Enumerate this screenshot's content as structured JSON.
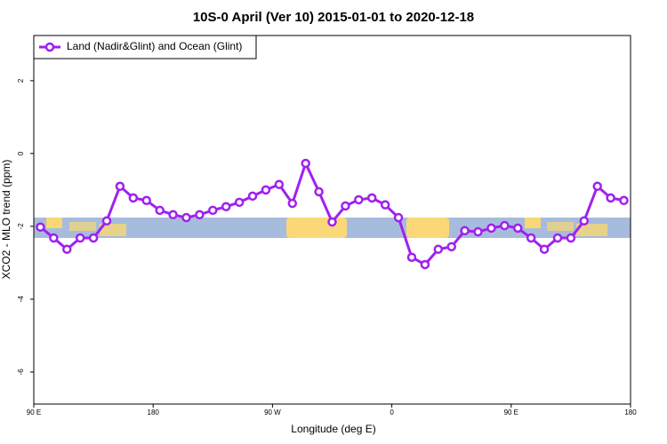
{
  "chart_data": {
    "type": "line",
    "title": "10S-0 April (Ver 10)   2015-01-01 to 2020-12-18",
    "xlabel": "Longitude (deg E)",
    "ylabel": "XCO2 - MLO trend (ppm)",
    "x": [
      95,
      105,
      115,
      125,
      135,
      145,
      155,
      165,
      175,
      185,
      195,
      205,
      215,
      225,
      235,
      245,
      255,
      265,
      275,
      285,
      295,
      305,
      315,
      325,
      335,
      345,
      355,
      365,
      375,
      385,
      395,
      405,
      415,
      425,
      435,
      445,
      455,
      465,
      475,
      485,
      495,
      505,
      515,
      525,
      535
    ],
    "series": [
      {
        "name": "Land (Nadir&Glint) and Ocean (Glint)",
        "color": "#a020f0",
        "values": [
          -2.02,
          -2.32,
          -2.63,
          -2.32,
          -2.32,
          -1.85,
          -0.9,
          -1.22,
          -1.29,
          -1.56,
          -1.68,
          -1.76,
          -1.68,
          -1.56,
          -1.46,
          -1.34,
          -1.17,
          -1.0,
          -0.85,
          -1.37,
          -0.27,
          -1.05,
          -1.88,
          -1.44,
          -1.27,
          -1.22,
          -1.41,
          -1.76,
          -2.85,
          -3.05,
          -2.63,
          -2.56,
          -2.12,
          -2.15,
          -2.05,
          -1.98,
          -2.05,
          -2.32,
          -2.63,
          -2.32,
          -2.32,
          -1.85,
          -0.9,
          -1.22,
          -1.29
        ]
      }
    ],
    "xlim": [
      90,
      540
    ],
    "xticks": [
      {
        "value": 90,
        "label": "90 E"
      },
      180,
      {
        "value": 270,
        "label": "90 W"
      },
      {
        "value": 360,
        "label": "0"
      },
      {
        "value": 450,
        "label": "90 E"
      },
      {
        "value": 540,
        "label": "180"
      }
    ],
    "ylim": [
      -6.88,
      3.24
    ],
    "yticks": [
      2,
      0,
      -2,
      -4,
      -6
    ],
    "legend": "top-left"
  }
}
